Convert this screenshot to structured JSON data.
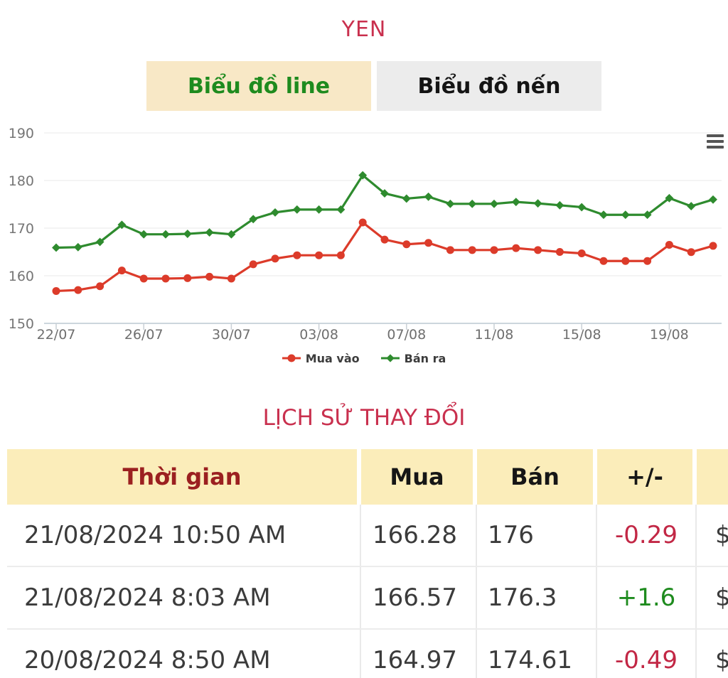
{
  "title": "YEN",
  "tabs": [
    {
      "label": "Biểu đồ line",
      "active": true
    },
    {
      "label": "Biểu đồ nến",
      "active": false
    }
  ],
  "chart_data": {
    "type": "line",
    "x": [
      "22/07",
      "23/07",
      "24/07",
      "25/07",
      "26/07",
      "27/07",
      "28/07",
      "29/07",
      "30/07",
      "31/07",
      "01/08",
      "02/08",
      "03/08",
      "04/08",
      "05/08",
      "06/08",
      "07/08",
      "08/08",
      "09/08",
      "10/08",
      "11/08",
      "12/08",
      "13/08",
      "14/08",
      "15/08",
      "16/08",
      "17/08",
      "18/08",
      "19/08",
      "20/08",
      "21/08"
    ],
    "x_tick_labels": [
      "22/07",
      "26/07",
      "30/07",
      "03/08",
      "07/08",
      "11/08",
      "15/08",
      "19/08"
    ],
    "y_ticks": [
      150,
      160,
      170,
      180,
      190
    ],
    "ylim": [
      150,
      190
    ],
    "grid": true,
    "legend_position": "bottom",
    "series": [
      {
        "name": "Mua vào",
        "color": "#dc3b2a",
        "marker": "circle",
        "values": [
          156.8,
          157.0,
          157.8,
          161.1,
          159.4,
          159.4,
          159.5,
          159.8,
          159.4,
          162.4,
          163.6,
          164.3,
          164.3,
          164.3,
          171.2,
          167.6,
          166.6,
          166.9,
          165.4,
          165.4,
          165.4,
          165.8,
          165.4,
          165.0,
          164.7,
          163.1,
          163.1,
          163.1,
          166.5,
          164.97,
          166.28
        ]
      },
      {
        "name": "Bán ra",
        "color": "#2e8b2e",
        "marker": "diamond",
        "values": [
          165.9,
          166.0,
          167.1,
          170.7,
          168.7,
          168.7,
          168.8,
          169.1,
          168.7,
          171.9,
          173.3,
          173.9,
          173.9,
          173.9,
          181.1,
          177.3,
          176.2,
          176.6,
          175.1,
          175.1,
          175.1,
          175.5,
          175.2,
          174.8,
          174.4,
          172.8,
          172.8,
          172.8,
          176.3,
          174.61,
          176.0
        ]
      }
    ]
  },
  "chart_menu_icon": "hamburger-menu",
  "history": {
    "title": "LỊCH SỬ THAY ĐỔI",
    "columns": {
      "time": "Thời gian",
      "mua": "Mua",
      "ban": "Bán",
      "change": "+/-",
      "currency": ""
    },
    "rows": [
      {
        "time": "21/08/2024 10:50 AM",
        "mua": "166.28",
        "ban": "176",
        "change": "-0.29",
        "change_dir": "down",
        "currency": "$"
      },
      {
        "time": "21/08/2024 8:03 AM",
        "mua": "166.57",
        "ban": "176.3",
        "change": "+1.6",
        "change_dir": "up",
        "currency": "$"
      },
      {
        "time": "20/08/2024 8:50 AM",
        "mua": "164.97",
        "ban": "174.61",
        "change": "-0.49",
        "change_dir": "down",
        "currency": "$"
      }
    ]
  },
  "colors": {
    "title": "#c9304e",
    "section_title": "#c9304e",
    "tab_active_bg": "#f8e8c6",
    "tab_active_text": "#1e8b1e",
    "tab_inactive_bg": "#ececec",
    "table_header_bg": "#fbedba",
    "table_header_time_text": "#9b2020",
    "series_mua": "#dc3b2a",
    "series_ban": "#2e8b2e",
    "change_up": "#1e8b1e",
    "change_down": "#c22745",
    "axis_label": "#757575"
  }
}
